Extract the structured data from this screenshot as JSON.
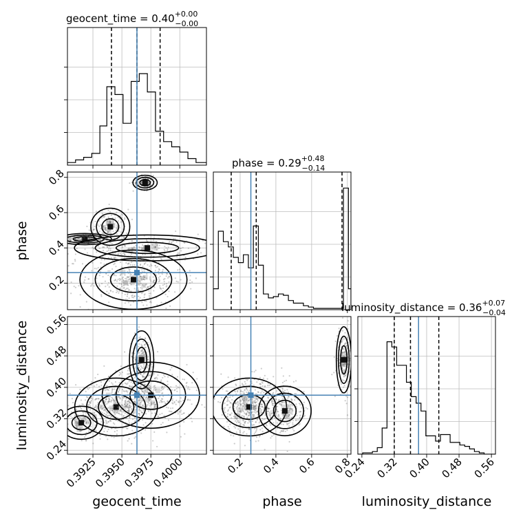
{
  "chart_data": {
    "type": "corner",
    "parameters": [
      "geocent_time",
      "phase",
      "luminosity_distance"
    ],
    "truth": {
      "geocent_time": 0.3963,
      "phase": 0.26,
      "luminosity_distance": 0.38
    },
    "colors": {
      "truth": "#4682b4",
      "lines": "#000000",
      "grid": "#bdbdbd",
      "density": "#6e6e6e"
    },
    "panels": {
      "geocent_time_hist": {
        "title": {
          "base": "geocent_time = 0.40",
          "sup": "+0.00",
          "sub": "−0.00"
        },
        "xlim": [
          0.3903,
          0.4023
        ],
        "quantiles": [
          0.3941,
          0.3963,
          0.3983
        ],
        "edges": [
          0.3903,
          0.391,
          0.3917,
          0.3924,
          0.3931,
          0.3937,
          0.3944,
          0.3951,
          0.3958,
          0.3965,
          0.3972,
          0.3979,
          0.3986,
          0.3993,
          0.4,
          0.4007,
          0.4014,
          0.4023
        ],
        "counts": [
          0.02,
          0.04,
          0.06,
          0.09,
          0.3,
          0.6,
          0.54,
          0.32,
          0.64,
          0.7,
          0.56,
          0.26,
          0.18,
          0.14,
          0.1,
          0.05,
          0.02
        ],
        "grid_x": [
          0.3925,
          0.395,
          0.3975,
          0.4
        ],
        "grid_y": [
          0.25,
          0.5,
          0.75
        ]
      },
      "phase_hist": {
        "title": {
          "base": "phase = 0.29",
          "sup": "+0.48",
          "sub": "−0.14"
        },
        "xlim": [
          0.05,
          0.82
        ],
        "quantiles": [
          0.15,
          0.29,
          0.77
        ],
        "edges": [
          0.05,
          0.078,
          0.106,
          0.134,
          0.162,
          0.19,
          0.218,
          0.246,
          0.274,
          0.302,
          0.33,
          0.358,
          0.386,
          0.414,
          0.442,
          0.47,
          0.498,
          0.526,
          0.554,
          0.582,
          0.61,
          0.638,
          0.666,
          0.694,
          0.722,
          0.75,
          0.778,
          0.806,
          0.82
        ],
        "counts": [
          0.16,
          0.6,
          0.52,
          0.48,
          0.4,
          0.36,
          0.42,
          0.32,
          0.64,
          0.34,
          0.12,
          0.09,
          0.1,
          0.12,
          0.11,
          0.07,
          0.05,
          0.05,
          0.03,
          0.02,
          0.01,
          0.01,
          0.01,
          0.01,
          0.01,
          0.01,
          0.93,
          0.16
        ],
        "grid_x": [
          0.2,
          0.4,
          0.6,
          0.8
        ],
        "grid_y": [
          0.25,
          0.5,
          0.75
        ]
      },
      "luminosity_distance_hist": {
        "title": {
          "base": "luminosity_distance = 0.36",
          "sup": "+0.07",
          "sub": "−0.04"
        },
        "xlim": [
          0.23,
          0.57
        ],
        "quantiles": [
          0.32,
          0.36,
          0.43
        ],
        "edges": [
          0.23,
          0.242,
          0.254,
          0.266,
          0.278,
          0.29,
          0.302,
          0.314,
          0.326,
          0.338,
          0.35,
          0.362,
          0.374,
          0.386,
          0.398,
          0.41,
          0.422,
          0.434,
          0.446,
          0.458,
          0.47,
          0.482,
          0.494,
          0.506,
          0.518,
          0.53,
          0.542,
          0.554,
          0.57
        ],
        "counts": [
          0.0,
          0.01,
          0.01,
          0.02,
          0.05,
          0.2,
          0.86,
          0.82,
          0.68,
          0.68,
          0.55,
          0.44,
          0.39,
          0.33,
          0.14,
          0.14,
          0.1,
          0.15,
          0.15,
          0.09,
          0.09,
          0.07,
          0.06,
          0.04,
          0.02,
          0.01,
          0.0,
          0.0
        ],
        "grid_x": [
          0.24,
          0.32,
          0.4,
          0.48,
          0.56
        ],
        "grid_y": [
          0.25,
          0.5,
          0.75
        ]
      },
      "phase_vs_geocent_time": {
        "xlim": [
          0.3903,
          0.4023
        ],
        "ylim": [
          0.05,
          0.83
        ],
        "grid_x": [
          0.3925,
          0.395,
          0.3975,
          0.4
        ],
        "grid_y": [
          0.2,
          0.4,
          0.6,
          0.8
        ]
      },
      "luminosity_distance_vs_geocent_time": {
        "xlim": [
          0.3903,
          0.4023
        ],
        "ylim": [
          0.23,
          0.58
        ],
        "grid_x": [
          0.3925,
          0.395,
          0.3975,
          0.4
        ],
        "grid_y": [
          0.24,
          0.32,
          0.4,
          0.48,
          0.56
        ]
      },
      "luminosity_distance_vs_phase": {
        "xlim": [
          0.05,
          0.82
        ],
        "ylim": [
          0.23,
          0.58
        ],
        "grid_x": [
          0.2,
          0.4,
          0.6,
          0.8
        ],
        "grid_y": [
          0.24,
          0.32,
          0.4,
          0.48,
          0.56
        ]
      }
    },
    "tick_labels": {
      "geocent_time": [
        "0.3925",
        "0.3950",
        "0.3975",
        "0.4000"
      ],
      "phase": [
        "0.2",
        "0.4",
        "0.6",
        "0.8"
      ],
      "luminosity_distance": [
        "0.24",
        "0.32",
        "0.40",
        "0.48",
        "0.56"
      ]
    },
    "axis_labels": {
      "x": [
        "geocent_time",
        "phase",
        "luminosity_distance"
      ],
      "y": [
        "phase",
        "luminosity_distance"
      ]
    },
    "scatter_clusters": {
      "phase_vs_geocent_time": [
        {
          "x": 0.3918,
          "y": 0.45,
          "sx": 0.0011,
          "sy": 0.015,
          "n": 260
        },
        {
          "x": 0.394,
          "y": 0.52,
          "sx": 0.0008,
          "sy": 0.05,
          "n": 160
        },
        {
          "x": 0.3972,
          "y": 0.4,
          "sx": 0.003,
          "sy": 0.035,
          "n": 220
        },
        {
          "x": 0.396,
          "y": 0.22,
          "sx": 0.0022,
          "sy": 0.08,
          "n": 420
        },
        {
          "x": 0.397,
          "y": 0.77,
          "sx": 0.0005,
          "sy": 0.02,
          "n": 120
        }
      ],
      "luminosity_distance_vs_geocent_time": [
        {
          "x": 0.3945,
          "y": 0.35,
          "sx": 0.0017,
          "sy": 0.035,
          "n": 500
        },
        {
          "x": 0.3975,
          "y": 0.38,
          "sx": 0.002,
          "sy": 0.04,
          "n": 350
        },
        {
          "x": 0.3967,
          "y": 0.47,
          "sx": 0.0005,
          "sy": 0.035,
          "n": 140
        },
        {
          "x": 0.3915,
          "y": 0.31,
          "sx": 0.0009,
          "sy": 0.02,
          "n": 80
        }
      ],
      "luminosity_distance_vs_phase": [
        {
          "x": 0.25,
          "y": 0.35,
          "sx": 0.1,
          "sy": 0.035,
          "n": 600
        },
        {
          "x": 0.45,
          "y": 0.34,
          "sx": 0.07,
          "sy": 0.03,
          "n": 220
        },
        {
          "x": 0.78,
          "y": 0.47,
          "sx": 0.02,
          "sy": 0.04,
          "n": 160
        }
      ]
    }
  }
}
